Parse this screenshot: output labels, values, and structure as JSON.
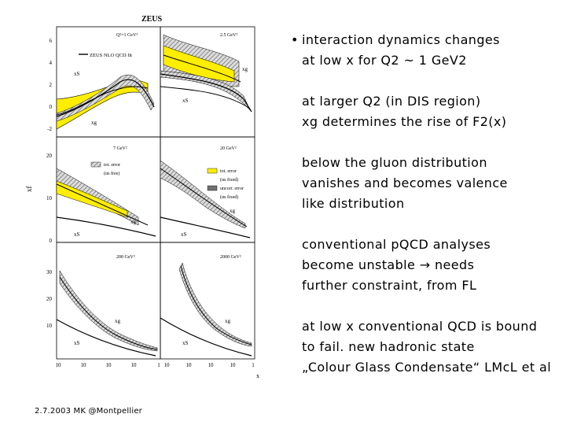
{
  "figure": {
    "title": "ZEUS",
    "y_axis_label": "xf",
    "x_axis_label": "x",
    "legend_fit": "ZEUS NLO QCD fit",
    "legend_tot_free": [
      "tot. error",
      "(αs free)"
    ],
    "legend_tot_fixed": [
      "tot. error",
      "(αs fixed)"
    ],
    "legend_uncorr_fixed": [
      "uncorr. error",
      "(αs fixed)"
    ],
    "panels": [
      {
        "q2": "Q²=1 GeV²",
        "labels": [
          "xS",
          "xg"
        ]
      },
      {
        "q2": "2.5 GeV²",
        "labels": [
          "xS",
          "xg"
        ]
      },
      {
        "q2": "7 GeV²",
        "labels": [
          "xS",
          "xg"
        ]
      },
      {
        "q2": "20 GeV²",
        "labels": [
          "xS",
          "xg"
        ]
      },
      {
        "q2": "200 GeV²",
        "labels": [
          "xS",
          "xg"
        ]
      },
      {
        "q2": "2000 GeV²",
        "labels": [
          "xS",
          "xg"
        ]
      }
    ],
    "row1_yticks": [
      "6",
      "4",
      "2",
      "0",
      "-2"
    ],
    "row2_yticks": [
      "20",
      "10",
      "0"
    ],
    "row3_yticks": [
      "30",
      "20",
      "10"
    ],
    "xticks": [
      "10",
      "10",
      "10",
      "10",
      "1"
    ],
    "colors": {
      "band_yellow": "#ffee00",
      "band_hatch": "#6f6f6f"
    }
  },
  "bullets": [
    {
      "marker": "•",
      "lines": [
        "interaction dynamics changes",
        "at low x for Q2 ~ 1 GeV2"
      ]
    },
    {
      "marker": "",
      "lines": [
        "at larger Q2 (in DIS region)",
        "xg determines the rise of F2(x)"
      ]
    },
    {
      "marker": "",
      "lines": [
        "below the gluon distribution",
        "vanishes and becomes valence",
        "like distribution"
      ]
    },
    {
      "marker": "",
      "lines": [
        "conventional pQCD analyses",
        "become unstable → needs",
        "further constraint, from FL"
      ]
    },
    {
      "marker": "",
      "lines": [
        "at low x conventional QCD is bound",
        "to fail. new hadronic state",
        "„Colour Glass Condensate“ LMcL et al"
      ]
    }
  ],
  "footer": "2.7.2003 MK @Montpellier"
}
